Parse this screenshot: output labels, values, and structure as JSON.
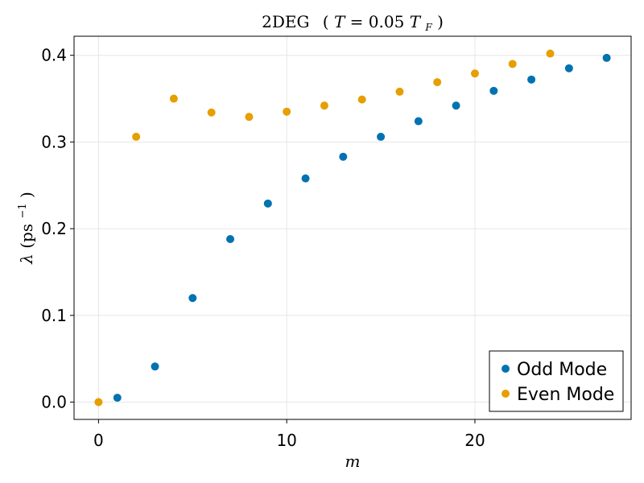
{
  "chart_data": {
    "type": "scatter",
    "title_parts": {
      "main": "2DEG",
      "open_paren": "(",
      "T": "T",
      "equals": " = 0.05 ",
      "T_F": "T",
      "sub_F": "F",
      "close_paren": ")"
    },
    "xlabel": "m",
    "ylabel_parts": {
      "lambda": "λ",
      "open": "(ps",
      "sup": "−1",
      "close": ")"
    },
    "xlim": [
      -1.3,
      28.3
    ],
    "ylim": [
      -0.02,
      0.422
    ],
    "xticks": [
      0,
      10,
      20
    ],
    "xtick_labels": [
      "0",
      "10",
      "20"
    ],
    "yticks": [
      0.0,
      0.1,
      0.2,
      0.3,
      0.4
    ],
    "ytick_labels": [
      "0.0",
      "0.1",
      "0.2",
      "0.3",
      "0.4"
    ],
    "grid": true,
    "legend_position": "bottom-right",
    "series": [
      {
        "name": "Odd Mode",
        "color": "#0072b2",
        "x": [
          1,
          3,
          5,
          7,
          9,
          11,
          13,
          15,
          17,
          19,
          21,
          23,
          25,
          27
        ],
        "y": [
          0.005,
          0.041,
          0.12,
          0.188,
          0.229,
          0.258,
          0.283,
          0.306,
          0.324,
          0.342,
          0.359,
          0.372,
          0.385,
          0.397
        ]
      },
      {
        "name": "Even Mode",
        "color": "#e69f00",
        "x": [
          0,
          2,
          4,
          6,
          8,
          10,
          12,
          14,
          16,
          18,
          20,
          22,
          24
        ],
        "y": [
          0.0,
          0.306,
          0.35,
          0.334,
          0.329,
          0.335,
          0.342,
          0.349,
          0.358,
          0.369,
          0.379,
          0.39,
          0.402
        ]
      }
    ]
  }
}
